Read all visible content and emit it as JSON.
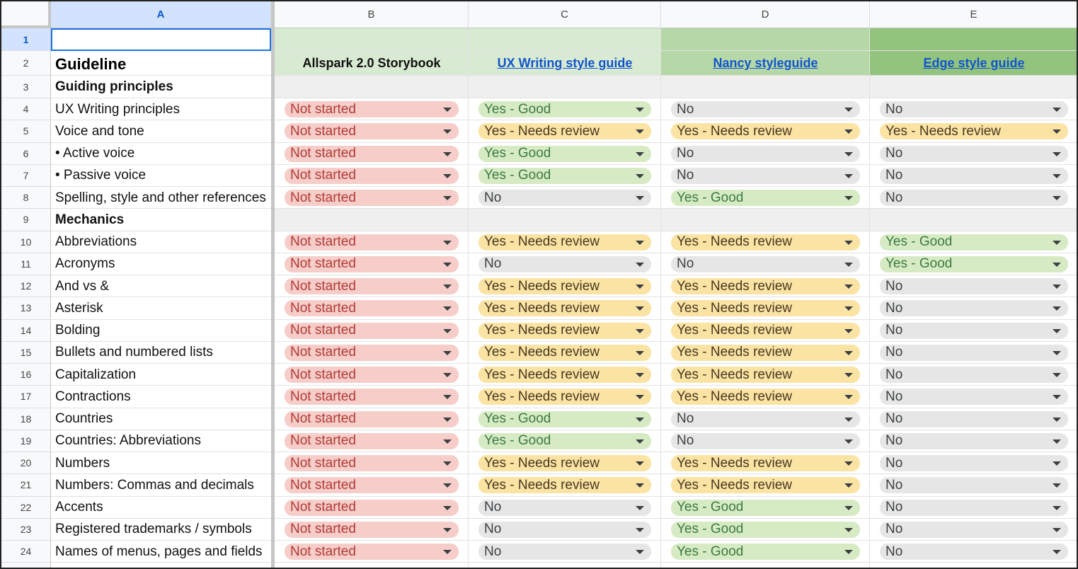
{
  "column_headers": [
    "A",
    "B",
    "C",
    "D",
    "E"
  ],
  "row_numbers": [
    1,
    2,
    3,
    4,
    5,
    6,
    7,
    8,
    9,
    10,
    11,
    12,
    13,
    14,
    15,
    16,
    17,
    18,
    19,
    20,
    21,
    22,
    23,
    24
  ],
  "header": {
    "label": "Guideline",
    "sources": [
      {
        "text": "Allspark 2.0 Storybook",
        "link": false,
        "color": "#d9ead3"
      },
      {
        "text": "UX Writing style guide",
        "link": true,
        "color": "#d9ead3"
      },
      {
        "text": "Nancy styleguide",
        "link": true,
        "color": "#b6d7a8"
      },
      {
        "text": "Edge style guide",
        "link": true,
        "color": "#93c47d"
      }
    ]
  },
  "status_options": [
    {
      "label": "Not started",
      "bg": "#f6cdc9",
      "fg": "#b23a35"
    },
    {
      "label": "Yes - Good",
      "bg": "#d6ebc4",
      "fg": "#3d7a3f"
    },
    {
      "label": "Yes - Needs review",
      "bg": "#fbe3a3",
      "fg": "#473821"
    },
    {
      "label": "No",
      "bg": "#e6e6e6",
      "fg": "#3c4043"
    }
  ],
  "rows": [
    {
      "label": "Guiding principles"
    },
    {
      "label": "UX Writing principles",
      "statuses": [
        "Not started",
        "Yes - Good",
        "No",
        "No"
      ]
    },
    {
      "label": "Voice and tone",
      "statuses": [
        "Not started",
        "Yes - Needs review",
        "Yes - Needs review",
        "Yes - Needs review"
      ]
    },
    {
      "label": "• Active voice",
      "statuses": [
        "Not started",
        "Yes - Good",
        "No",
        "No"
      ]
    },
    {
      "label": "• Passive voice",
      "statuses": [
        "Not started",
        "Yes - Good",
        "No",
        "No"
      ]
    },
    {
      "label": "Spelling, style and other references",
      "statuses": [
        "Not started",
        "No",
        "Yes - Good",
        "No"
      ]
    },
    {
      "label": "Mechanics"
    },
    {
      "label": "Abbreviations",
      "statuses": [
        "Not started",
        "Yes - Needs review",
        "Yes - Needs review",
        "Yes - Good"
      ]
    },
    {
      "label": "Acronyms",
      "statuses": [
        "Not started",
        "No",
        "No",
        "Yes - Good"
      ]
    },
    {
      "label": "And vs &",
      "statuses": [
        "Not started",
        "Yes - Needs review",
        "Yes - Needs review",
        "No"
      ]
    },
    {
      "label": "Asterisk",
      "statuses": [
        "Not started",
        "Yes - Needs review",
        "Yes - Needs review",
        "No"
      ]
    },
    {
      "label": "Bolding",
      "statuses": [
        "Not started",
        "Yes - Needs review",
        "Yes - Needs review",
        "No"
      ]
    },
    {
      "label": "Bullets and numbered lists",
      "statuses": [
        "Not started",
        "Yes - Needs review",
        "Yes - Needs review",
        "No"
      ]
    },
    {
      "label": "Capitalization",
      "statuses": [
        "Not started",
        "Yes - Needs review",
        "Yes - Needs review",
        "No"
      ]
    },
    {
      "label": "Contractions",
      "statuses": [
        "Not started",
        "Yes - Needs review",
        "Yes - Needs review",
        "No"
      ]
    },
    {
      "label": "Countries",
      "statuses": [
        "Not started",
        "Yes - Good",
        "No",
        "No"
      ]
    },
    {
      "label": "Countries: Abbreviations",
      "statuses": [
        "Not started",
        "Yes - Good",
        "No",
        "No"
      ]
    },
    {
      "label": "Numbers",
      "statuses": [
        "Not started",
        "Yes - Needs review",
        "Yes - Needs review",
        "No"
      ]
    },
    {
      "label": "Numbers: Commas and decimals",
      "statuses": [
        "Not started",
        "Yes - Needs review",
        "Yes - Needs review",
        "No"
      ]
    },
    {
      "label": "Accents",
      "statuses": [
        "Not started",
        "No",
        "Yes - Good",
        "No"
      ]
    },
    {
      "label": "Registered trademarks / symbols",
      "statuses": [
        "Not started",
        "No",
        "Yes - Good",
        "No"
      ]
    },
    {
      "label": "Names of menus, pages and fields",
      "statuses": [
        "Not started",
        "No",
        "Yes - Good",
        "No"
      ]
    }
  ]
}
